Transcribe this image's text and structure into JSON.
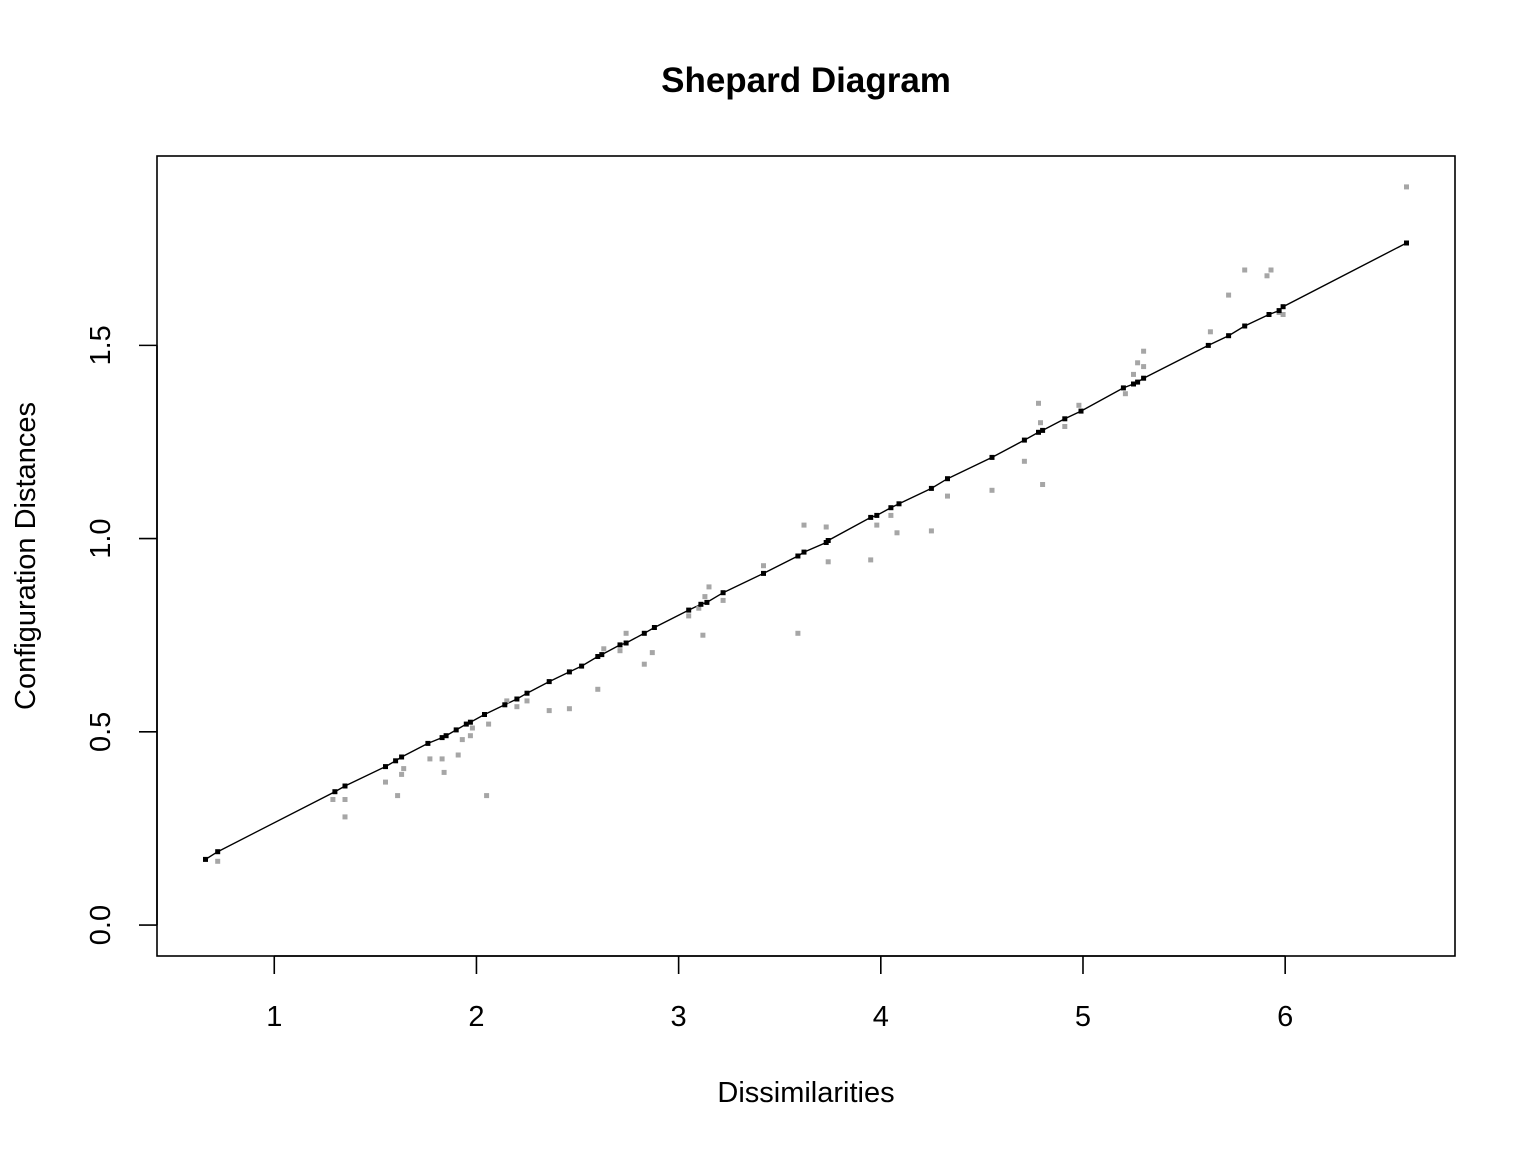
{
  "chart_data": {
    "type": "scatter",
    "title": "Shepard Diagram",
    "xlabel": "Dissimilarities",
    "ylabel": "Configuration Distances",
    "xlim": [
      0.42,
      6.84
    ],
    "ylim": [
      -0.08,
      1.99
    ],
    "x_ticks": [
      1,
      2,
      3,
      4,
      5,
      6
    ],
    "x_tick_labels": [
      "1",
      "2",
      "3",
      "4",
      "5",
      "6"
    ],
    "y_ticks": [
      0.0,
      0.5,
      1.0,
      1.5
    ],
    "y_tick_labels": [
      "0.0",
      "0.5",
      "1.0",
      "1.5"
    ],
    "grid": false,
    "series": [
      {
        "color": "#a6a6a6",
        "marker": "square",
        "points": [
          [
            0.72,
            0.165
          ],
          [
            1.29,
            0.325
          ],
          [
            1.35,
            0.325
          ],
          [
            1.35,
            0.28
          ],
          [
            1.55,
            0.37
          ],
          [
            1.61,
            0.335
          ],
          [
            1.63,
            0.39
          ],
          [
            1.64,
            0.405
          ],
          [
            1.77,
            0.43
          ],
          [
            1.83,
            0.43
          ],
          [
            1.84,
            0.395
          ],
          [
            1.91,
            0.44
          ],
          [
            1.93,
            0.48
          ],
          [
            1.97,
            0.49
          ],
          [
            1.98,
            0.51
          ],
          [
            2.05,
            0.335
          ],
          [
            2.06,
            0.52
          ],
          [
            2.15,
            0.58
          ],
          [
            2.2,
            0.565
          ],
          [
            2.25,
            0.58
          ],
          [
            2.36,
            0.555
          ],
          [
            2.46,
            0.56
          ],
          [
            2.6,
            0.61
          ],
          [
            2.63,
            0.715
          ],
          [
            2.71,
            0.71
          ],
          [
            2.74,
            0.755
          ],
          [
            2.83,
            0.675
          ],
          [
            2.87,
            0.705
          ],
          [
            3.05,
            0.8
          ],
          [
            3.1,
            0.82
          ],
          [
            3.12,
            0.75
          ],
          [
            3.13,
            0.85
          ],
          [
            3.15,
            0.875
          ],
          [
            3.22,
            0.84
          ],
          [
            3.42,
            0.93
          ],
          [
            3.59,
            0.755
          ],
          [
            3.62,
            1.035
          ],
          [
            3.73,
            1.03
          ],
          [
            3.74,
            0.94
          ],
          [
            3.95,
            0.945
          ],
          [
            3.98,
            1.035
          ],
          [
            4.05,
            1.06
          ],
          [
            4.08,
            1.015
          ],
          [
            4.25,
            1.02
          ],
          [
            4.33,
            1.11
          ],
          [
            4.55,
            1.125
          ],
          [
            4.71,
            1.2
          ],
          [
            4.78,
            1.35
          ],
          [
            4.79,
            1.3
          ],
          [
            4.8,
            1.14
          ],
          [
            4.91,
            1.29
          ],
          [
            4.98,
            1.345
          ],
          [
            5.21,
            1.375
          ],
          [
            5.25,
            1.425
          ],
          [
            5.27,
            1.455
          ],
          [
            5.3,
            1.485
          ],
          [
            5.3,
            1.445
          ],
          [
            5.63,
            1.535
          ],
          [
            5.72,
            1.63
          ],
          [
            5.8,
            1.695
          ],
          [
            5.91,
            1.68
          ],
          [
            5.93,
            1.695
          ],
          [
            5.97,
            1.585
          ],
          [
            5.99,
            1.58
          ],
          [
            6.6,
            1.91
          ]
        ]
      },
      {
        "color": "#000000",
        "marker": "square",
        "points": [
          [
            0.66,
            0.17
          ],
          [
            0.72,
            0.19
          ],
          [
            1.3,
            0.345
          ],
          [
            1.35,
            0.36
          ],
          [
            1.55,
            0.41
          ],
          [
            1.6,
            0.425
          ],
          [
            1.63,
            0.435
          ],
          [
            1.76,
            0.47
          ],
          [
            1.83,
            0.485
          ],
          [
            1.85,
            0.49
          ],
          [
            1.9,
            0.505
          ],
          [
            1.95,
            0.52
          ],
          [
            1.97,
            0.525
          ],
          [
            2.04,
            0.545
          ],
          [
            2.14,
            0.57
          ],
          [
            2.2,
            0.585
          ],
          [
            2.25,
            0.6
          ],
          [
            2.36,
            0.63
          ],
          [
            2.46,
            0.655
          ],
          [
            2.52,
            0.67
          ],
          [
            2.6,
            0.695
          ],
          [
            2.62,
            0.7
          ],
          [
            2.71,
            0.725
          ],
          [
            2.74,
            0.73
          ],
          [
            2.83,
            0.755
          ],
          [
            2.88,
            0.77
          ],
          [
            3.05,
            0.815
          ],
          [
            3.11,
            0.83
          ],
          [
            3.14,
            0.835
          ],
          [
            3.22,
            0.86
          ],
          [
            3.42,
            0.91
          ],
          [
            3.59,
            0.955
          ],
          [
            3.62,
            0.965
          ],
          [
            3.73,
            0.99
          ],
          [
            3.74,
            0.995
          ],
          [
            3.95,
            1.055
          ],
          [
            3.98,
            1.06
          ],
          [
            4.05,
            1.08
          ],
          [
            4.09,
            1.09
          ],
          [
            4.25,
            1.13
          ],
          [
            4.33,
            1.155
          ],
          [
            4.55,
            1.21
          ],
          [
            4.71,
            1.255
          ],
          [
            4.78,
            1.275
          ],
          [
            4.8,
            1.28
          ],
          [
            4.91,
            1.31
          ],
          [
            4.99,
            1.33
          ],
          [
            5.2,
            1.39
          ],
          [
            5.25,
            1.4
          ],
          [
            5.27,
            1.405
          ],
          [
            5.3,
            1.415
          ],
          [
            5.62,
            1.5
          ],
          [
            5.72,
            1.525
          ],
          [
            5.8,
            1.55
          ],
          [
            5.92,
            1.58
          ],
          [
            5.97,
            1.59
          ],
          [
            5.99,
            1.6
          ],
          [
            6.6,
            1.765
          ]
        ]
      }
    ]
  }
}
